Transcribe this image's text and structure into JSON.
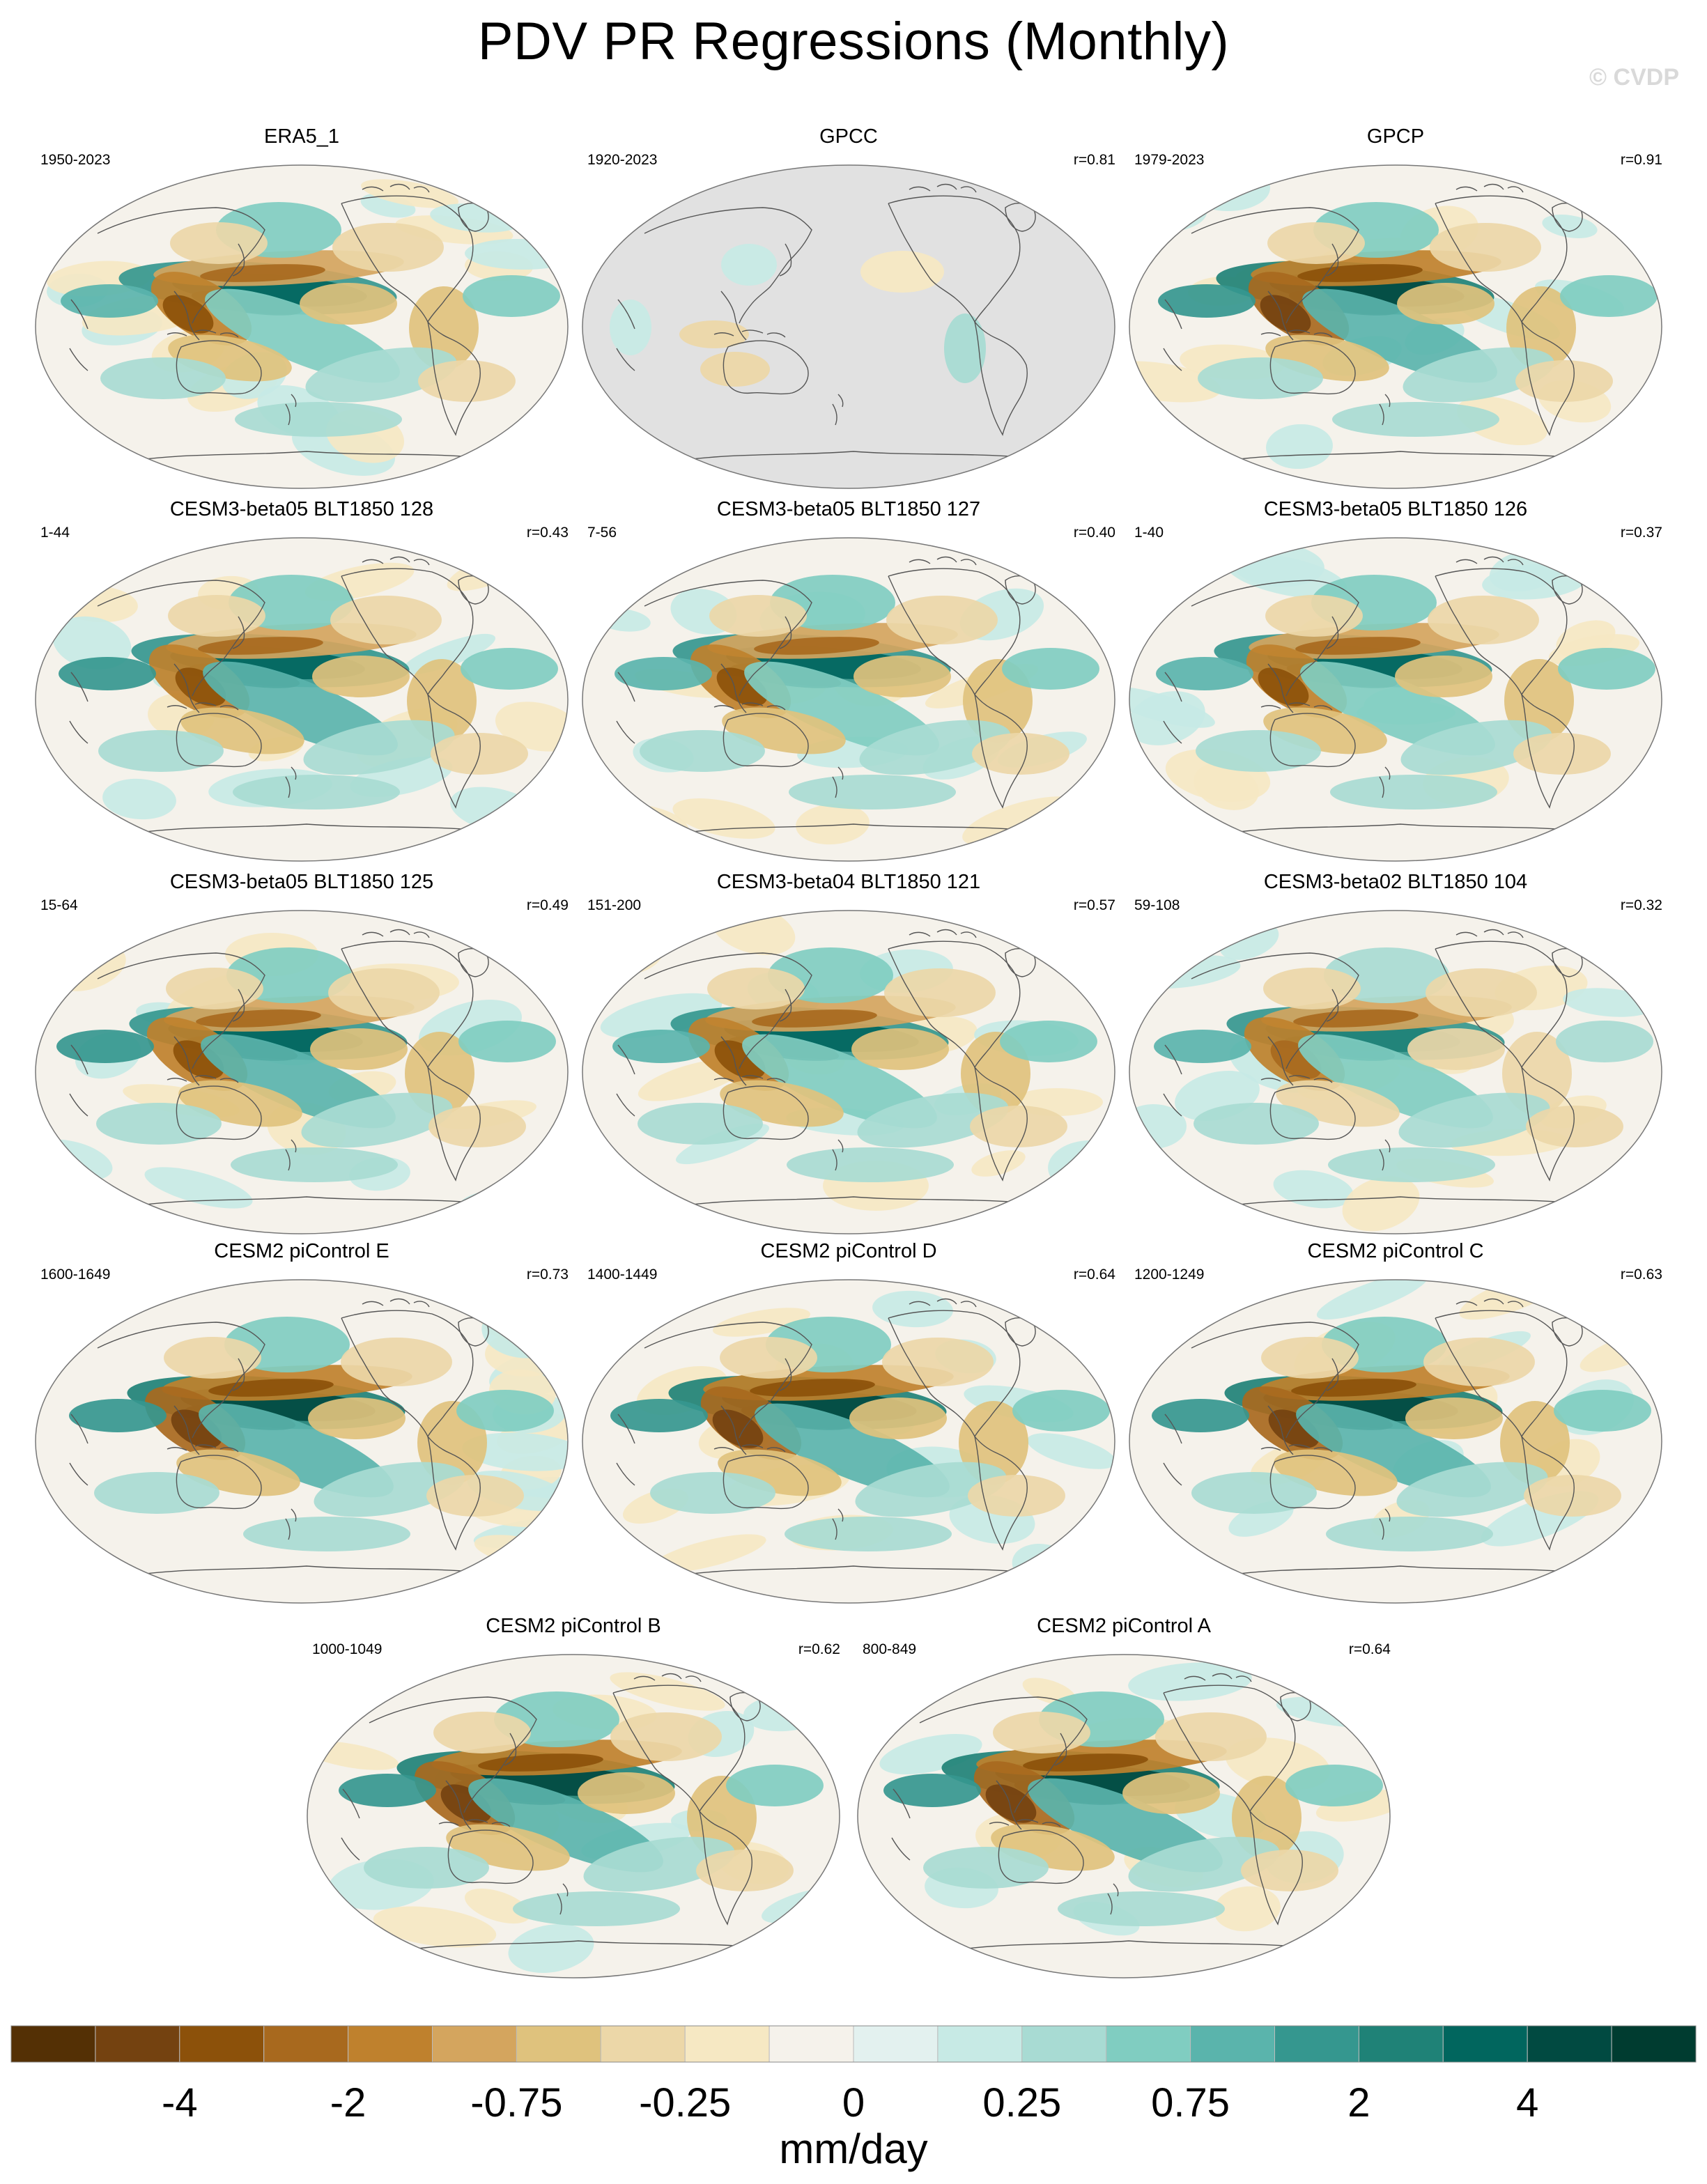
{
  "title": "PDV PR Regressions (Monthly)",
  "watermark": "© CVDP",
  "chart_data": {
    "type": "map",
    "projection": "Robinson (Pacific-centered)",
    "variable": "precipitation regression on PDV index",
    "units": "mm/day",
    "panels": [
      {
        "name": "ERA5_1",
        "period": "1950-2023",
        "r": "",
        "ocean_missing": false,
        "pattern_strength": 0.85
      },
      {
        "name": "GPCC",
        "period": "1920-2023",
        "r": "r=0.81",
        "ocean_missing": true,
        "pattern_strength": 0.35
      },
      {
        "name": "GPCP",
        "period": "1979-2023",
        "r": "r=0.91",
        "ocean_missing": false,
        "pattern_strength": 0.95
      },
      {
        "name": "CESM3-beta05 BLT1850 128",
        "period": "1-44",
        "r": "r=0.43",
        "ocean_missing": false,
        "pattern_strength": 0.9
      },
      {
        "name": "CESM3-beta05 BLT1850 127",
        "period": "7-56",
        "r": "r=0.40",
        "ocean_missing": false,
        "pattern_strength": 0.85
      },
      {
        "name": "CESM3-beta05 BLT1850 126",
        "period": "1-40",
        "r": "r=0.37",
        "ocean_missing": false,
        "pattern_strength": 0.85
      },
      {
        "name": "CESM3-beta05 BLT1850 125",
        "period": "15-64",
        "r": "r=0.49",
        "ocean_missing": false,
        "pattern_strength": 0.9
      },
      {
        "name": "CESM3-beta04 BLT1850 121",
        "period": "151-200",
        "r": "r=0.57",
        "ocean_missing": false,
        "pattern_strength": 0.85
      },
      {
        "name": "CESM3-beta02 BLT1850 104",
        "period": "59-108",
        "r": "r=0.32",
        "ocean_missing": false,
        "pattern_strength": 0.8
      },
      {
        "name": "CESM2 piControl E",
        "period": "1600-1649",
        "r": "r=0.73",
        "ocean_missing": false,
        "pattern_strength": 1.0
      },
      {
        "name": "CESM2 piControl D",
        "period": "1400-1449",
        "r": "r=0.64",
        "ocean_missing": false,
        "pattern_strength": 1.0
      },
      {
        "name": "CESM2 piControl C",
        "period": "1200-1249",
        "r": "r=0.63",
        "ocean_missing": false,
        "pattern_strength": 1.0
      },
      {
        "name": "CESM2 piControl B",
        "period": "1000-1049",
        "r": "r=0.62",
        "ocean_missing": false,
        "pattern_strength": 0.95
      },
      {
        "name": "CESM2 piControl A",
        "period": "800-849",
        "r": "r=0.64",
        "ocean_missing": false,
        "pattern_strength": 1.0
      }
    ],
    "colorbar": {
      "label": "mm/day",
      "tick_labels": [
        "-4",
        "-2",
        "-0.75",
        "-0.25",
        "0",
        "0.25",
        "0.75",
        "2",
        "4"
      ],
      "colors": [
        "#543005",
        "#744210",
        "#8c510a",
        "#a8691e",
        "#bf812d",
        "#d4a55e",
        "#dfc27d",
        "#ecd7a8",
        "#f6e8c3",
        "#f5f2eb",
        "#e3f1ef",
        "#c7eae5",
        "#a8dbd3",
        "#80cdc1",
        "#5ab4ac",
        "#35978f",
        "#1f8277",
        "#01665e",
        "#014a41",
        "#003c30"
      ]
    }
  }
}
